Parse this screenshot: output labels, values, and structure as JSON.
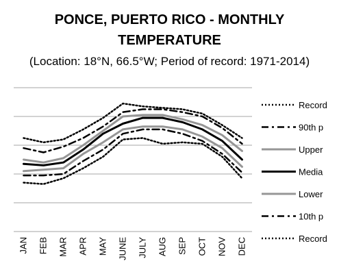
{
  "chart_data": {
    "type": "line",
    "title_line1": "PONCE, PUERTO RICO - MONTHLY",
    "title_line2": "TEMPERATURE",
    "subtitle": "(Location: 18°N, 66.5°W; Period of record: 1971-2014)",
    "categories": [
      "JAN",
      "FEB",
      "MAR",
      "APR",
      "MAY",
      "JUNE",
      "JULY",
      "AUG",
      "SEP",
      "OCT",
      "NOV",
      "DEC"
    ],
    "ylim": [
      0,
      5
    ],
    "grid": true,
    "y_tick_labels_visible": false,
    "legend_placement": "right",
    "series": [
      {
        "name": "Record",
        "style": "dotted",
        "color": "#000000",
        "values": [
          3.25,
          3.1,
          3.2,
          3.55,
          3.95,
          4.45,
          4.35,
          4.3,
          4.25,
          4.1,
          3.7,
          3.25
        ]
      },
      {
        "name": "90th p",
        "style": "dashdot",
        "color": "#000000",
        "values": [
          2.9,
          2.75,
          2.95,
          3.25,
          3.65,
          4.15,
          4.25,
          4.25,
          4.15,
          4.0,
          3.6,
          3.05
        ]
      },
      {
        "name": "Upper",
        "style": "solid",
        "color": "#969696",
        "values": [
          2.5,
          2.4,
          2.55,
          3.0,
          3.5,
          4.0,
          4.05,
          4.05,
          3.9,
          3.7,
          3.35,
          2.8
        ]
      },
      {
        "name": "Media",
        "style": "solid",
        "color": "#000000",
        "values": [
          2.35,
          2.3,
          2.4,
          2.85,
          3.4,
          3.75,
          3.95,
          3.95,
          3.8,
          3.55,
          3.15,
          2.5
        ]
      },
      {
        "name": "Lower",
        "style": "solid",
        "color": "#969696",
        "values": [
          2.1,
          2.15,
          2.2,
          2.7,
          3.1,
          3.55,
          3.65,
          3.65,
          3.55,
          3.3,
          2.9,
          2.25
        ]
      },
      {
        "name": "10th p",
        "style": "dashdot",
        "color": "#000000",
        "values": [
          1.95,
          1.95,
          2.0,
          2.45,
          2.85,
          3.4,
          3.55,
          3.55,
          3.4,
          3.15,
          2.7,
          2.05
        ]
      },
      {
        "name": "Record",
        "style": "dotted",
        "color": "#000000",
        "values": [
          1.7,
          1.65,
          1.85,
          2.2,
          2.6,
          3.2,
          3.25,
          3.05,
          3.1,
          3.05,
          2.6,
          1.85
        ]
      }
    ]
  }
}
